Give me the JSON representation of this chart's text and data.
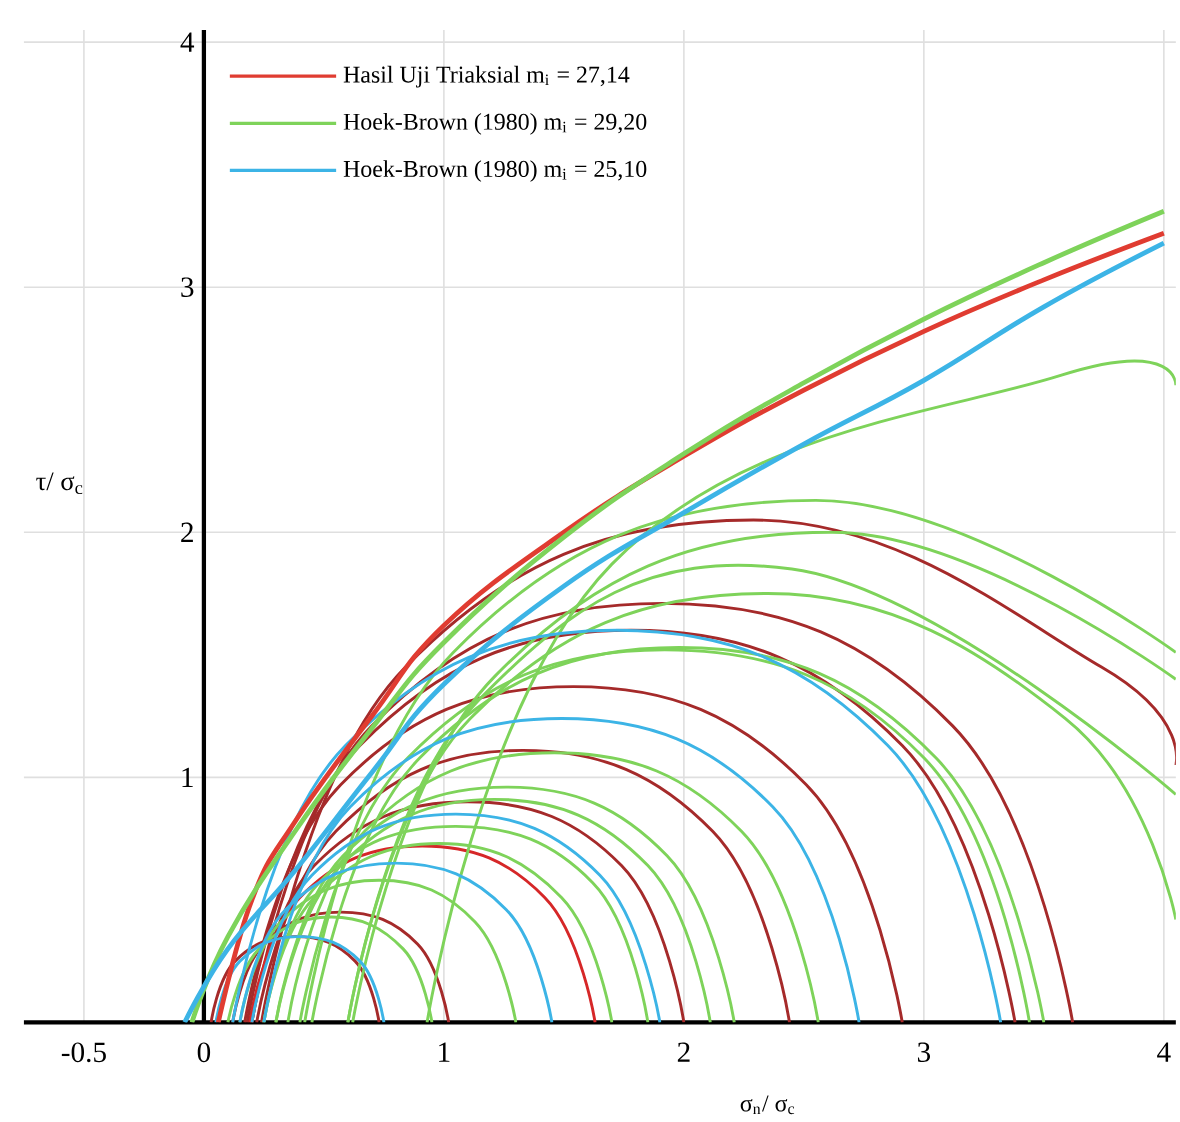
{
  "chart_data": {
    "type": "line",
    "xlabel": "σ$_{n}$/ σ$_{c}$",
    "ylabel": "τ/ σ$_{c}$",
    "xlim": [
      -0.75,
      4.05
    ],
    "ylim": [
      0,
      4.05
    ],
    "xticks": [
      -0.5,
      0,
      1,
      2,
      3,
      4
    ],
    "yticks": [
      1,
      2,
      3,
      4
    ],
    "grid": true,
    "legend": "top left",
    "marker": "none",
    "line_style": "solid",
    "series": [
      {
        "color": "#a52a2a",
        "x": [
          0.24,
          0.84,
          2.29,
          3.74,
          4.05
        ],
        "values": [
          0,
          1.45,
          2.05,
          1.45,
          1.05
        ]
      },
      {
        "color": "#a52a2a",
        "x": [
          0.2,
          0.7,
          1.91,
          3.12,
          3.62
        ],
        "values": [
          0,
          1.21,
          1.71,
          1.21,
          0
        ]
      },
      {
        "color": "#a52a2a",
        "x": [
          0.17,
          0.57,
          1.54,
          2.51,
          2.91
        ],
        "values": [
          0,
          0.97,
          1.37,
          0.97,
          0
        ]
      },
      {
        "color": "#a52a2a",
        "x": [
          0.22,
          0.55,
          1.33,
          2.12,
          2.44
        ],
        "values": [
          0,
          0.78,
          1.11,
          0.78,
          0
        ]
      },
      {
        "color": "#a52a2a",
        "x": [
          0.2,
          0.46,
          1.1,
          1.74,
          2.0
        ],
        "values": [
          0,
          0.64,
          0.9,
          0.64,
          0
        ]
      },
      {
        "color": "#d62728",
        "x": [
          0.19,
          0.4,
          0.91,
          1.42,
          1.63
        ],
        "values": [
          0,
          0.51,
          0.72,
          0.51,
          0
        ]
      },
      {
        "color": "#a52a2a",
        "x": [
          0.12,
          0.25,
          0.57,
          0.89,
          1.02
        ],
        "values": [
          0,
          0.32,
          0.45,
          0.32,
          0
        ]
      },
      {
        "color": "#a52a2a",
        "x": [
          0.03,
          0.13,
          0.38,
          0.63,
          0.73
        ],
        "values": [
          0,
          0.25,
          0.35,
          0.25,
          0
        ]
      },
      {
        "color": "#a52a2a",
        "x": [
          0.18,
          0.65,
          1.78,
          2.91,
          3.38
        ],
        "values": [
          0,
          1.13,
          1.6,
          1.13,
          0
        ]
      },
      {
        "color": "#7ed35a",
        "x": [
          0.93,
          1.7,
          3.57,
          4.05
        ],
        "values": [
          0,
          1.87,
          2.64,
          2.6
        ]
      },
      {
        "color": "#7ed35a",
        "x": [
          0.42,
          1.04,
          2.55,
          4.05
        ],
        "values": [
          0,
          1.51,
          2.13,
          1.51
        ]
      },
      {
        "color": "#7ed35a",
        "x": [
          0.62,
          1.21,
          2.62,
          4.05
        ],
        "values": [
          0,
          1.41,
          2.0,
          1.4
        ]
      },
      {
        "color": "#7ed35a",
        "x": [
          0.6,
          1.14,
          2.45,
          4.05
        ],
        "values": [
          0,
          1.31,
          1.85,
          0.93
        ]
      },
      {
        "color": "#7ed35a",
        "x": [
          0.6,
          1.11,
          2.35,
          3.59,
          4.05
        ],
        "values": [
          0,
          1.24,
          1.75,
          1.24,
          0.42
        ]
      },
      {
        "color": "#7ed35a",
        "x": [
          0.45,
          0.9,
          1.98,
          3.05,
          3.5
        ],
        "values": [
          0,
          1.08,
          1.53,
          1.08,
          0
        ]
      },
      {
        "color": "#7ed35a",
        "x": [
          0.4,
          0.85,
          1.92,
          3.0,
          3.44
        ],
        "values": [
          0,
          1.08,
          1.52,
          1.08,
          0
        ]
      },
      {
        "color": "#7ed35a",
        "x": [
          0.35,
          0.67,
          1.46,
          2.24,
          2.56
        ],
        "values": [
          0,
          0.78,
          1.1,
          0.78,
          0
        ]
      },
      {
        "color": "#7ed35a",
        "x": [
          0.3,
          0.58,
          1.26,
          1.93,
          2.21
        ],
        "values": [
          0,
          0.68,
          0.96,
          0.68,
          0
        ]
      },
      {
        "color": "#7ed35a",
        "x": [
          0.3,
          0.57,
          1.21,
          1.85,
          2.11
        ],
        "values": [
          0,
          0.64,
          0.91,
          0.64,
          0
        ]
      },
      {
        "color": "#7ed35a",
        "x": [
          0.25,
          0.48,
          1.05,
          1.62,
          1.85
        ],
        "values": [
          0,
          0.57,
          0.8,
          0.57,
          0
        ]
      },
      {
        "color": "#7ed35a",
        "x": [
          0.25,
          0.46,
          0.98,
          1.49,
          1.7
        ],
        "values": [
          0,
          0.51,
          0.73,
          0.51,
          0
        ]
      },
      {
        "color": "#7ed35a",
        "x": [
          0.15,
          0.32,
          0.73,
          1.13,
          1.3
        ],
        "values": [
          0,
          0.41,
          0.58,
          0.41,
          0
        ]
      },
      {
        "color": "#7ed35a",
        "x": [
          0.1,
          0.23,
          0.53,
          0.83,
          0.95
        ],
        "values": [
          0,
          0.3,
          0.43,
          0.3,
          0
        ]
      },
      {
        "color": "#3cb4e6",
        "x": [
          0.12,
          0.59,
          1.72,
          2.85,
          3.32
        ],
        "values": [
          0,
          1.13,
          1.6,
          1.13,
          0
        ]
      },
      {
        "color": "#3cb4e6",
        "x": [
          0.25,
          0.61,
          1.49,
          2.37,
          2.73
        ],
        "values": [
          0,
          0.88,
          1.24,
          0.88,
          0
        ]
      },
      {
        "color": "#3cb4e6",
        "x": [
          0.2,
          0.45,
          1.05,
          1.65,
          1.9
        ],
        "values": [
          0,
          0.6,
          0.85,
          0.6,
          0
        ]
      },
      {
        "color": "#3cb4e6",
        "x": [
          0.15,
          0.34,
          0.8,
          1.26,
          1.45
        ],
        "values": [
          0,
          0.46,
          0.65,
          0.46,
          0
        ]
      },
      {
        "color": "#3cb4e6",
        "x": [
          0.05,
          0.15,
          0.4,
          0.65,
          0.75
        ],
        "values": [
          0,
          0.25,
          0.35,
          0.25,
          0
        ]
      },
      {
        "name": "Hasil Uji Triaksial     m$_{i}$ = 27,14",
        "color": "#e03c31",
        "x": [
          0.06,
          0.2,
          0.38,
          0.7,
          1,
          1.5,
          2,
          2.5,
          3,
          3.5,
          4.0
        ],
        "values": [
          0,
          0.5,
          0.82,
          1.25,
          1.62,
          2.0,
          2.31,
          2.58,
          2.82,
          3.03,
          3.22
        ]
      },
      {
        "name": "Hoek-Brown (1980)   m$_{i}$ = 29,20",
        "color": "#7ed35a",
        "x": [
          -0.05,
          0.1,
          0.38,
          0.7,
          1,
          1.5,
          2,
          2.5,
          3,
          3.5,
          4.0
        ],
        "values": [
          0,
          0.35,
          0.78,
          1.2,
          1.55,
          1.98,
          2.32,
          2.61,
          2.87,
          3.1,
          3.31
        ]
      },
      {
        "name": "Hoek-Brown (1980)   m$_{i}$ = 25,10",
        "color": "#3cb4e6",
        "x": [
          -0.08,
          0.1,
          0.38,
          0.7,
          1,
          1.5,
          2,
          2.5,
          3,
          3.5,
          4.0
        ],
        "values": [
          0,
          0.3,
          0.62,
          1.02,
          1.38,
          1.78,
          2.08,
          2.36,
          2.62,
          2.92,
          3.18
        ]
      }
    ]
  }
}
